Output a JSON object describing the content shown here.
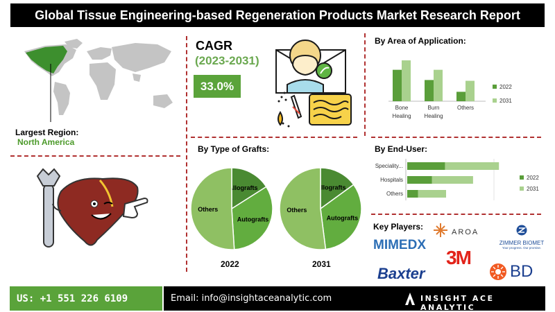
{
  "header": {
    "title": "Global Tissue Engineering-based Regeneration Products Market Research Report"
  },
  "region": {
    "label": "Largest Region:",
    "value": "North America"
  },
  "cagr": {
    "title": "CAGR",
    "period": "(2023-2031)",
    "value": "33.0%"
  },
  "colors": {
    "dark_green": "#5a9e3a",
    "light_green": "#a9d18e",
    "accent_red": "#b03030",
    "brand_green": "#5aa33a"
  },
  "chart_data": [
    {
      "type": "bar",
      "title": "By Area of Application:",
      "categories": [
        "Bone Healing",
        "Burn Healing",
        "Others"
      ],
      "series": [
        {
          "name": "2022",
          "values": [
            4.0,
            2.7,
            1.2
          ]
        },
        {
          "name": "2031",
          "values": [
            5.2,
            4.0,
            2.6
          ]
        }
      ],
      "ylim": [
        0,
        6
      ],
      "grid": false,
      "legend": "right"
    },
    {
      "type": "bar",
      "orientation": "horizontal",
      "title": "By End-User:",
      "categories": [
        "Speciality...",
        "Hospitals",
        "Others"
      ],
      "series": [
        {
          "name": "2022",
          "values": [
            3.5,
            2.3,
            1.0
          ]
        },
        {
          "name": "2031",
          "values": [
            5.0,
            3.8,
            2.6
          ]
        }
      ],
      "stacked": true,
      "xlim": [
        0,
        9
      ],
      "grid": false,
      "legend": "right"
    },
    {
      "type": "pie",
      "title": "By Type of Grafts:",
      "label": "2022",
      "categories": [
        "Allografts",
        "Autografts",
        "Others"
      ],
      "values": [
        16,
        33,
        51
      ]
    },
    {
      "type": "pie",
      "label": "2031",
      "categories": [
        "Allografts",
        "Autografts",
        "Others"
      ],
      "values": [
        15,
        33,
        52
      ]
    }
  ],
  "key_players": {
    "title": "Key Players:",
    "logos": {
      "aroa": "AROA",
      "zimmer": "ZIMMER BIOMET",
      "zimmer_tagline": "Your progress. Our promise.",
      "mimedx": "MIMEDX",
      "mmm": "3M",
      "baxter": "Baxter",
      "bd": "BD"
    }
  },
  "footer": {
    "phone": "US: +1 551 226 6109",
    "email": "Email: info@insightaceanalytic.com",
    "brand": "INSIGHT ACE ANALYTIC"
  }
}
